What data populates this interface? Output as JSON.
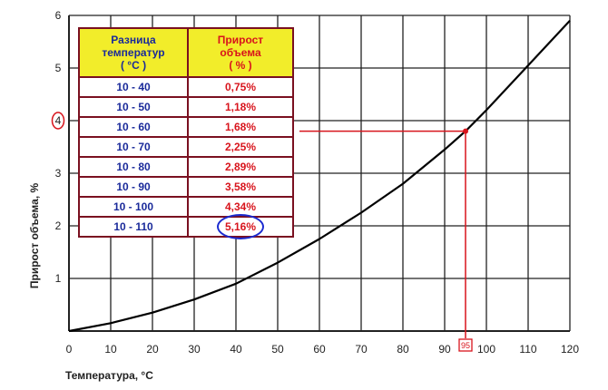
{
  "chart_data": {
    "type": "line",
    "xlabel": "Температура, °С",
    "ylabel": "Прирост объема, %",
    "xlim": [
      0,
      120
    ],
    "ylim": [
      0,
      6
    ],
    "x_ticks": [
      "0",
      "10",
      "20",
      "30",
      "40",
      "50",
      "60",
      "70",
      "80",
      "90",
      "100",
      "110",
      "120"
    ],
    "y_ticks": [
      "1",
      "2",
      "3",
      "4",
      "5",
      "6"
    ],
    "grid": true,
    "series": [
      {
        "color": "#000000",
        "x": [
          0,
          10,
          20,
          30,
          40,
          50,
          60,
          70,
          80,
          90,
          95,
          100,
          110,
          120
        ],
        "y": [
          0,
          0.15,
          0.35,
          0.6,
          0.9,
          1.3,
          1.75,
          2.25,
          2.8,
          3.45,
          3.8,
          4.2,
          5.05,
          5.9
        ]
      }
    ],
    "annotation": {
      "x": 95,
      "y": 3.8,
      "x_label": "95",
      "circled_y_tick": "4",
      "color": "#d8141c"
    },
    "table": {
      "headers": [
        [
          "Разница",
          "температур",
          "( °С )"
        ],
        [
          "Прирост",
          "объема",
          "( % )"
        ]
      ],
      "rows": [
        [
          "10 - 40",
          "0,75%"
        ],
        [
          "10 - 50",
          "1,18%"
        ],
        [
          "10 - 60",
          "1,68%"
        ],
        [
          "10 - 70",
          "2,25%"
        ],
        [
          "10 - 80",
          "2,89%"
        ],
        [
          "10 - 90",
          "3,58%"
        ],
        [
          "10 - 100",
          "4,34%"
        ],
        [
          "10 - 110",
          "5,16%"
        ]
      ],
      "highlighted_row": 7,
      "header_color": "#f2ed2a",
      "border_color": "#7a1020"
    }
  }
}
